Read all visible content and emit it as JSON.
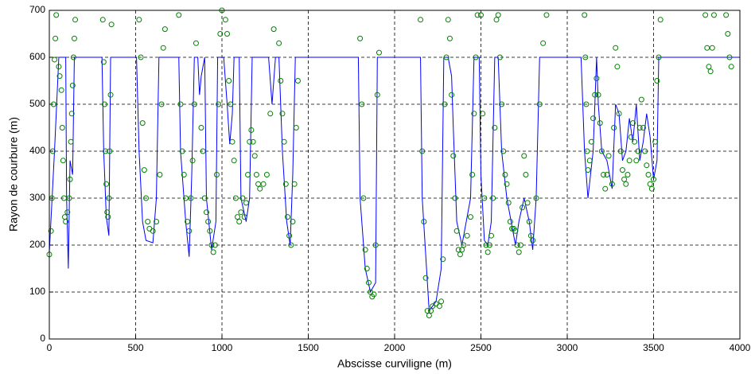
{
  "chart_data": {
    "type": "line",
    "xlabel": "Abscisse curviligne (m)",
    "ylabel": "Rayon de courbure (m)",
    "xlim": [
      0,
      4000
    ],
    "ylim": [
      0,
      700
    ],
    "xticks": [
      0,
      500,
      1000,
      1500,
      2000,
      2500,
      3000,
      3500,
      4000
    ],
    "yticks": [
      0,
      100,
      200,
      300,
      400,
      500,
      600,
      700
    ],
    "grid": true,
    "series": [
      {
        "color": "#0000ff",
        "style": "line",
        "x": [
          0,
          30,
          55,
          95,
          100,
          110,
          120,
          135,
          145,
          305,
          315,
          330,
          345,
          355,
          505,
          520,
          540,
          560,
          600,
          620,
          635,
          750,
          760,
          790,
          810,
          825,
          840,
          860,
          870,
          880,
          900,
          910,
          940,
          965,
          975,
          1010,
          1030,
          1045,
          1060,
          1070,
          1100,
          1110,
          1140,
          1160,
          1175,
          1270,
          1290,
          1310,
          1330,
          1350,
          1375,
          1395,
          1410,
          1425,
          1790,
          1800,
          1830,
          1860,
          1890,
          1900,
          2150,
          2160,
          2200,
          2240,
          2270,
          2285,
          2310,
          2330,
          2340,
          2360,
          2390,
          2440,
          2460,
          2490,
          2500,
          2520,
          2540,
          2560,
          2580,
          2600,
          2620,
          2650,
          2680,
          2700,
          2720,
          2750,
          2780,
          2800,
          2820,
          2840,
          2880,
          3080,
          3100,
          3120,
          3150,
          3170,
          3180,
          3200,
          3230,
          3260,
          3280,
          3300,
          3320,
          3340,
          3360,
          3380,
          3400,
          3420,
          3440,
          3460,
          3480,
          3500,
          3520,
          3530,
          4000
        ],
        "values": [
          185,
          400,
          600,
          600,
          300,
          150,
          380,
          350,
          600,
          600,
          400,
          260,
          220,
          600,
          600,
          400,
          250,
          210,
          205,
          300,
          600,
          600,
          400,
          250,
          175,
          350,
          600,
          600,
          520,
          560,
          600,
          300,
          190,
          250,
          600,
          600,
          500,
          415,
          480,
          600,
          600,
          300,
          250,
          300,
          600,
          600,
          500,
          600,
          600,
          400,
          250,
          200,
          350,
          600,
          600,
          300,
          150,
          100,
          120,
          600,
          600,
          300,
          60,
          80,
          150,
          600,
          600,
          560,
          450,
          250,
          200,
          300,
          600,
          600,
          350,
          210,
          200,
          250,
          600,
          600,
          400,
          300,
          240,
          200,
          250,
          300,
          250,
          190,
          300,
          600,
          600,
          600,
          400,
          300,
          400,
          600,
          500,
          400,
          380,
          320,
          500,
          480,
          380,
          400,
          470,
          420,
          500,
          380,
          420,
          480,
          430,
          340,
          380,
          600,
          600
        ]
      },
      {
        "color": "#008000",
        "style": "circle",
        "x": [
          0,
          10,
          15,
          20,
          25,
          30,
          35,
          40,
          55,
          60,
          70,
          75,
          80,
          85,
          90,
          95,
          105,
          115,
          120,
          125,
          130,
          135,
          140,
          145,
          150,
          310,
          315,
          320,
          325,
          330,
          335,
          340,
          345,
          350,
          355,
          360,
          520,
          530,
          540,
          550,
          560,
          570,
          580,
          600,
          620,
          640,
          650,
          660,
          670,
          750,
          760,
          770,
          780,
          790,
          800,
          810,
          820,
          830,
          840,
          850,
          880,
          890,
          900,
          910,
          920,
          930,
          940,
          950,
          960,
          970,
          980,
          990,
          1000,
          1020,
          1030,
          1040,
          1050,
          1060,
          1070,
          1080,
          1090,
          1100,
          1110,
          1120,
          1130,
          1140,
          1150,
          1160,
          1170,
          1180,
          1190,
          1200,
          1210,
          1220,
          1240,
          1260,
          1280,
          1300,
          1330,
          1340,
          1350,
          1360,
          1370,
          1380,
          1390,
          1400,
          1410,
          1420,
          1430,
          1440,
          1800,
          1810,
          1820,
          1830,
          1840,
          1850,
          1860,
          1870,
          1880,
          1890,
          1900,
          1910,
          2150,
          2160,
          2170,
          2180,
          2190,
          2200,
          2210,
          2220,
          2240,
          2260,
          2270,
          2280,
          2290,
          2300,
          2310,
          2320,
          2330,
          2340,
          2350,
          2360,
          2370,
          2380,
          2390,
          2400,
          2420,
          2440,
          2450,
          2460,
          2470,
          2480,
          2500,
          2510,
          2520,
          2530,
          2540,
          2550,
          2560,
          2570,
          2580,
          2590,
          2600,
          2610,
          2620,
          2630,
          2640,
          2650,
          2660,
          2670,
          2680,
          2690,
          2700,
          2710,
          2720,
          2730,
          2740,
          2750,
          2760,
          2770,
          2780,
          2790,
          2800,
          2820,
          2840,
          2860,
          2880,
          3100,
          3105,
          3110,
          3115,
          3120,
          3130,
          3140,
          3150,
          3160,
          3170,
          3180,
          3190,
          3200,
          3210,
          3220,
          3230,
          3240,
          3260,
          3270,
          3280,
          3290,
          3300,
          3310,
          3320,
          3330,
          3340,
          3350,
          3360,
          3370,
          3380,
          3390,
          3400,
          3410,
          3420,
          3430,
          3440,
          3450,
          3460,
          3470,
          3480,
          3490,
          3500,
          3510,
          3520,
          3530,
          3540,
          3800,
          3810,
          3820,
          3830,
          3840,
          3850,
          3920,
          3930,
          3940,
          3950
        ],
        "values": [
          180,
          230,
          300,
          400,
          500,
          595,
          640,
          690,
          580,
          560,
          530,
          450,
          380,
          300,
          260,
          250,
          270,
          300,
          340,
          420,
          480,
          540,
          600,
          640,
          680,
          680,
          590,
          500,
          400,
          330,
          270,
          260,
          300,
          400,
          520,
          670,
          680,
          600,
          460,
          360,
          300,
          250,
          235,
          230,
          250,
          350,
          500,
          620,
          660,
          690,
          500,
          400,
          350,
          300,
          250,
          230,
          300,
          380,
          500,
          630,
          450,
          400,
          300,
          270,
          250,
          230,
          200,
          185,
          200,
          350,
          500,
          650,
          700,
          680,
          650,
          550,
          500,
          420,
          380,
          300,
          260,
          250,
          270,
          300,
          260,
          290,
          350,
          420,
          445,
          420,
          390,
          350,
          330,
          320,
          330,
          350,
          480,
          660,
          630,
          550,
          480,
          420,
          330,
          260,
          220,
          200,
          250,
          330,
          450,
          550,
          640,
          500,
          300,
          190,
          150,
          120,
          100,
          90,
          95,
          200,
          520,
          610,
          680,
          400,
          250,
          130,
          60,
          50,
          60,
          70,
          75,
          70,
          80,
          170,
          500,
          600,
          680,
          640,
          520,
          390,
          300,
          230,
          190,
          180,
          190,
          200,
          220,
          260,
          350,
          480,
          600,
          690,
          690,
          480,
          300,
          200,
          185,
          200,
          220,
          300,
          450,
          680,
          690,
          600,
          500,
          400,
          350,
          330,
          290,
          250,
          235,
          235,
          230,
          200,
          185,
          200,
          280,
          390,
          350,
          290,
          250,
          220,
          210,
          300,
          500,
          630,
          690,
          690,
          600,
          500,
          400,
          360,
          380,
          420,
          470,
          520,
          555,
          520,
          460,
          400,
          350,
          320,
          350,
          390,
          330,
          450,
          620,
          580,
          480,
          400,
          360,
          340,
          330,
          350,
          380,
          430,
          460,
          420,
          380,
          400,
          450,
          510,
          450,
          400,
          370,
          350,
          330,
          320,
          340,
          420,
          550,
          600,
          680,
          690,
          620,
          580,
          570,
          620,
          690,
          690,
          650,
          600,
          580
        ]
      }
    ]
  }
}
